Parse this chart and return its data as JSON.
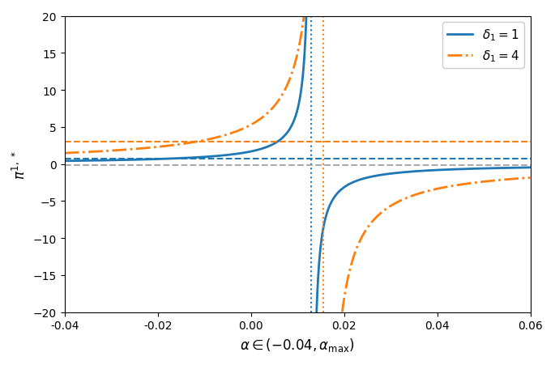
{
  "xlim": [
    -0.04,
    0.06
  ],
  "ylim": [
    -20,
    20
  ],
  "xlabel": "$\\alpha \\in (-0.04, \\alpha_{\\max})$",
  "ylabel": "$\\pi^{1,\\,*}$",
  "blue_color": "#1f77b4",
  "orange_color": "#ff7f0e",
  "gray_color": "#aaaaaa",
  "alpha_max_blue": 0.013,
  "alpha_max_orange": 0.0155,
  "hline_blue": 0.75,
  "hline_orange": 3.0,
  "hline_gray": -0.12,
  "C_blue": 0.022,
  "C_orange": 0.082,
  "legend_labels": [
    "$\\delta_1 = 1$",
    "$\\delta_1 = 4$"
  ]
}
